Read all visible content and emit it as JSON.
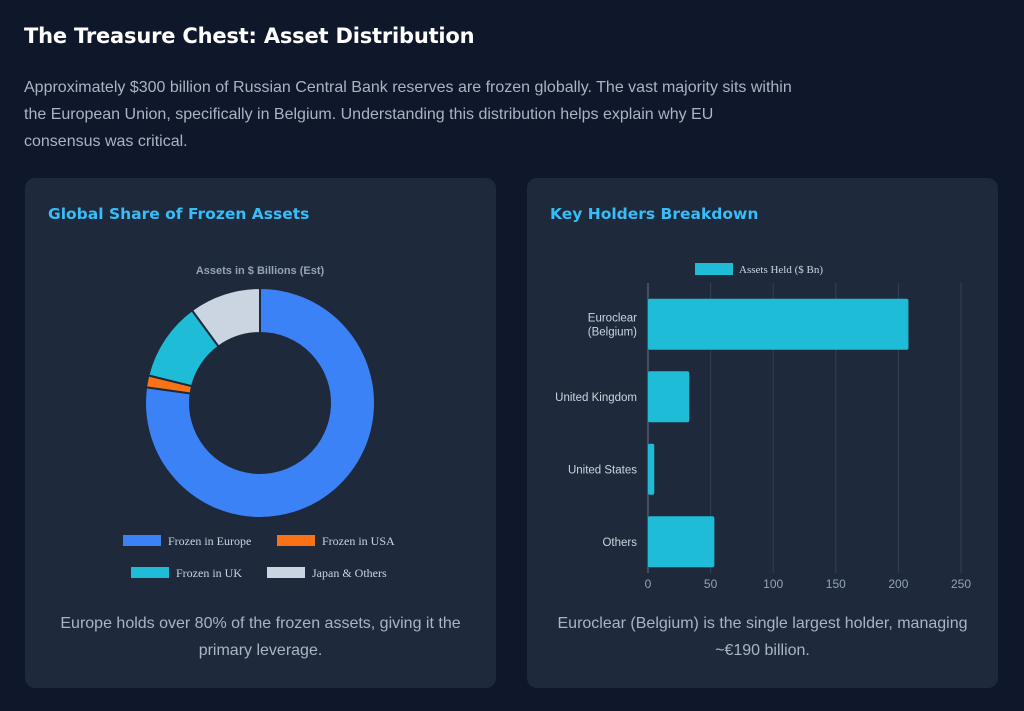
{
  "header": {
    "title": "The Treasure Chest: Asset Distribution",
    "intro": "Approximately $300 billion of Russian Central Bank reserves are frozen globally. The vast majority sits within the European Union, specifically in Belgium. Understanding this distribution helps explain why EU consensus was critical."
  },
  "left_card": {
    "title": "Global Share of Frozen Assets",
    "caption": "Europe holds over 80% of the frozen assets, giving it the primary leverage."
  },
  "right_card": {
    "title": "Key Holders Breakdown",
    "caption": "Euroclear (Belgium) is the single largest holder, managing ~€190 billion."
  },
  "chart_data": [
    {
      "type": "pie",
      "variant": "doughnut",
      "title": "Assets in $ Billions (Est)",
      "labels": [
        "Frozen in Europe",
        "Frozen in USA",
        "Frozen in UK",
        "Japan & Others"
      ],
      "values": [
        230,
        5,
        33,
        30
      ],
      "colors": [
        "#3b82f6",
        "#f97316",
        "#1ebcd6",
        "#cbd5e1"
      ],
      "legend": "bottom"
    },
    {
      "type": "bar",
      "orientation": "horizontal",
      "series_name": "Assets Held ($ Bn)",
      "categories": [
        [
          "Euroclear",
          "(Belgium)"
        ],
        [
          "United Kingdom"
        ],
        [
          "United States"
        ],
        [
          "Others"
        ]
      ],
      "values": [
        208,
        33,
        5,
        53
      ],
      "xlim": [
        0,
        250
      ],
      "xticks": [
        0,
        50,
        100,
        150,
        200,
        250
      ],
      "color": "#1ebcd6",
      "grid": true,
      "legend": "top"
    }
  ]
}
